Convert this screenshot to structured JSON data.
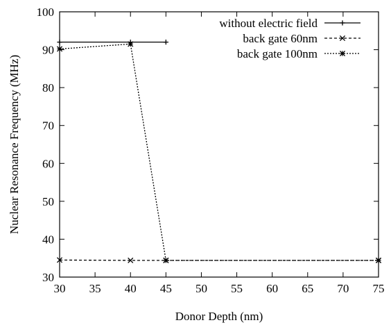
{
  "chart_data": {
    "type": "line",
    "title": "",
    "xlabel": "Donor Depth (nm)",
    "ylabel": "Nuclear Resonance Frequency (MHz)",
    "xlim": [
      30,
      75
    ],
    "ylim": [
      30,
      100
    ],
    "xticks": [
      "30",
      "35",
      "40",
      "45",
      "50",
      "55",
      "60",
      "65",
      "70",
      "75"
    ],
    "yticks": [
      "30",
      "40",
      "50",
      "60",
      "70",
      "80",
      "90",
      "100"
    ],
    "grid": false,
    "legend_position": "top-right",
    "series": [
      {
        "name": "without electric field",
        "style": "solid",
        "marker": "plus",
        "color": "#000000",
        "x": [
          30,
          40,
          45
        ],
        "y": [
          92.0,
          92.0,
          92.0
        ]
      },
      {
        "name": "back gate 60nm",
        "style": "dashed",
        "marker": "x",
        "color": "#000000",
        "x": [
          30,
          40,
          45,
          75
        ],
        "y": [
          34.5,
          34.4,
          34.4,
          34.4
        ]
      },
      {
        "name": "back gate 100nm",
        "style": "dotted",
        "marker": "star",
        "color": "#000000",
        "x": [
          30,
          40,
          45,
          75
        ],
        "y": [
          90.2,
          91.5,
          34.4,
          34.4
        ]
      }
    ]
  }
}
